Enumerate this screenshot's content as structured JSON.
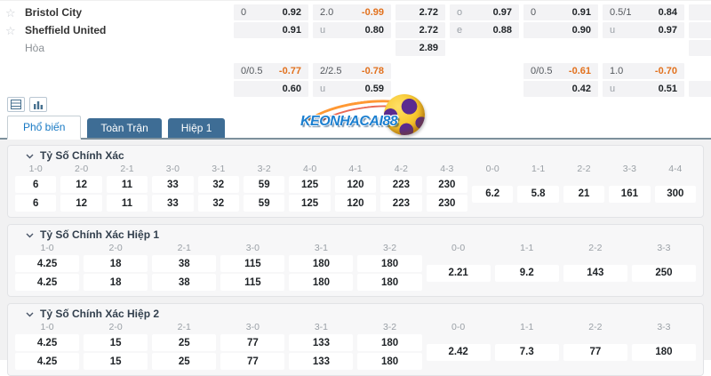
{
  "colors": {
    "negative_odds": "#e2711d",
    "tab_inactive_bg": "#3e6d95",
    "tab_active_text": "#1779c4",
    "logo_blue": "#1b7fd0",
    "ball_gold": "#f8c931",
    "ball_purple": "#5a2b90"
  },
  "match_panel": {
    "teams": [
      {
        "name": "Bristol City",
        "starred": true
      },
      {
        "name": "Sheffield United",
        "starred": true
      },
      {
        "name": "Hòa",
        "starred": false
      }
    ],
    "columns": [
      {
        "name": "handicap-ft",
        "cells": [
          {
            "label": "0",
            "value": "0.92"
          },
          {
            "label": "",
            "value": "0.91"
          },
          null,
          {
            "label": "0/0.5",
            "value": "-0.77",
            "neg": true
          },
          {
            "label": "",
            "value": "0.60"
          }
        ]
      },
      {
        "name": "over-under-ft",
        "cells": [
          {
            "label": "2.0",
            "value": "-0.99",
            "neg": true
          },
          {
            "label": "u",
            "value": "0.80",
            "muted": true
          },
          null,
          {
            "label": "2/2.5",
            "value": "-0.78",
            "neg": true
          },
          {
            "label": "u",
            "value": "0.59",
            "muted": true
          }
        ]
      },
      {
        "name": "1x2-ft",
        "cells": [
          {
            "label": "",
            "value": "2.72"
          },
          {
            "label": "",
            "value": "2.72"
          },
          {
            "label": "",
            "value": "2.89"
          },
          null,
          null
        ]
      },
      {
        "name": "odd-even",
        "cells": [
          {
            "label": "o",
            "value": "0.97",
            "muted": true
          },
          {
            "label": "e",
            "value": "0.88",
            "muted": true
          },
          null,
          null,
          null
        ]
      },
      {
        "name": "handicap-h1",
        "cells": [
          {
            "label": "0",
            "value": "0.91"
          },
          {
            "label": "",
            "value": "0.90"
          },
          null,
          {
            "label": "0/0.5",
            "value": "-0.61",
            "neg": true
          },
          {
            "label": "",
            "value": "0.42"
          }
        ]
      },
      {
        "name": "over-under-h1",
        "cells": [
          {
            "label": "0.5/1",
            "value": "0.84"
          },
          {
            "label": "u",
            "value": "0.97",
            "muted": true
          },
          null,
          {
            "label": "1.0",
            "value": "-0.70",
            "neg": true
          },
          {
            "label": "u",
            "value": "0.51",
            "muted": true
          }
        ]
      },
      {
        "name": "extra",
        "cells": [
          {
            "empty": true
          },
          {
            "empty": true
          },
          {
            "empty": true
          },
          null,
          {
            "empty": true
          }
        ]
      }
    ]
  },
  "view_toolbar": {
    "buttons": [
      {
        "name": "table-view",
        "icon": "table-view-icon"
      },
      {
        "name": "chart-view",
        "icon": "bar-chart-icon"
      }
    ]
  },
  "tab_bar": {
    "tabs": [
      {
        "label": "Phổ biến",
        "active": true
      },
      {
        "label": "Toàn Trận",
        "active": false
      },
      {
        "label": "Hiệp 1",
        "active": false
      }
    ]
  },
  "watermark": {
    "text": "KEONHACAI88"
  },
  "score_sections": [
    {
      "title": "Tỷ Số Chính Xác",
      "pair_headers": [
        "1-0",
        "2-0",
        "2-1",
        "3-0",
        "3-1",
        "3-2",
        "4-0",
        "4-1",
        "4-2",
        "4-3"
      ],
      "row1": [
        "6",
        "12",
        "11",
        "33",
        "32",
        "59",
        "125",
        "120",
        "223",
        "230"
      ],
      "row2": [
        "6",
        "12",
        "11",
        "33",
        "32",
        "59",
        "125",
        "120",
        "223",
        "230"
      ],
      "draw_headers": [
        "0-0",
        "1-1",
        "2-2",
        "3-3",
        "4-4"
      ],
      "draw_values": [
        "6.2",
        "5.8",
        "21",
        "161",
        "300"
      ]
    },
    {
      "title": "Tỷ Số Chính Xác Hiệp 1",
      "pair_headers": [
        "1-0",
        "2-0",
        "2-1",
        "3-0",
        "3-1",
        "3-2"
      ],
      "row1": [
        "4.25",
        "18",
        "38",
        "115",
        "180",
        "180"
      ],
      "row2": [
        "4.25",
        "18",
        "38",
        "115",
        "180",
        "180"
      ],
      "draw_headers": [
        "0-0",
        "1-1",
        "2-2",
        "3-3"
      ],
      "draw_values": [
        "2.21",
        "9.2",
        "143",
        "250"
      ]
    },
    {
      "title": "Tỷ Số Chính Xác Hiệp 2",
      "pair_headers": [
        "1-0",
        "2-0",
        "2-1",
        "3-0",
        "3-1",
        "3-2"
      ],
      "row1": [
        "4.25",
        "15",
        "25",
        "77",
        "133",
        "180"
      ],
      "row2": [
        "4.25",
        "15",
        "25",
        "77",
        "133",
        "180"
      ],
      "draw_headers": [
        "0-0",
        "1-1",
        "2-2",
        "3-3"
      ],
      "draw_values": [
        "2.42",
        "7.3",
        "77",
        "180"
      ]
    }
  ]
}
